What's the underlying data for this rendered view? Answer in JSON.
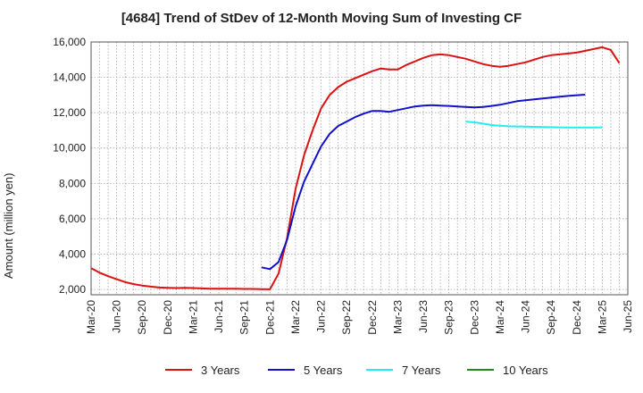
{
  "chart_data": {
    "type": "line",
    "title": "[4684]  Trend of StDev of 12-Month Moving Sum of Investing CF",
    "xlabel": "",
    "ylabel": "Amount (million yen)",
    "ylim": [
      1700,
      16000
    ],
    "yticks": [
      2000,
      4000,
      6000,
      8000,
      10000,
      12000,
      14000,
      16000
    ],
    "ytick_labels": [
      "2,000",
      "4,000",
      "6,000",
      "8,000",
      "10,000",
      "12,000",
      "14,000",
      "16,000"
    ],
    "x_start": "2020-03",
    "x_end": "2025-06",
    "xtick_labels": [
      "Mar-20",
      "Jun-20",
      "Sep-20",
      "Dec-20",
      "Mar-21",
      "Jun-21",
      "Sep-21",
      "Dec-21",
      "Mar-22",
      "Jun-22",
      "Sep-22",
      "Dec-22",
      "Mar-23",
      "Jun-23",
      "Sep-23",
      "Dec-23",
      "Mar-24",
      "Jun-24",
      "Sep-24",
      "Dec-24",
      "Mar-25",
      "Jun-25"
    ],
    "grid": true,
    "legend_position": "bottom",
    "series": [
      {
        "name": "3 Years",
        "color": "#dd1111",
        "start": "2020-03",
        "values": [
          3200,
          2950,
          2750,
          2580,
          2420,
          2300,
          2220,
          2160,
          2110,
          2090,
          2080,
          2090,
          2080,
          2060,
          2040,
          2040,
          2040,
          2040,
          2030,
          2030,
          2020,
          2010,
          2900,
          4900,
          7700,
          9600,
          11000,
          12250,
          13000,
          13450,
          13750,
          13950,
          14150,
          14350,
          14500,
          14450,
          14450,
          14700,
          14900,
          15100,
          15250,
          15300,
          15250,
          15150,
          15050,
          14900,
          14750,
          14650,
          14600,
          14650,
          14750,
          14850,
          15000,
          15150,
          15250,
          15300,
          15350,
          15400,
          15500,
          15600,
          15700,
          15550,
          14800
        ]
      },
      {
        "name": "5 Years",
        "color": "#1111cc",
        "start": "2021-11",
        "values": [
          3250,
          3150,
          3550,
          4800,
          6700,
          8100,
          9100,
          10100,
          10800,
          11250,
          11500,
          11750,
          11950,
          12100,
          12100,
          12050,
          12150,
          12250,
          12350,
          12400,
          12420,
          12400,
          12380,
          12350,
          12320,
          12300,
          12320,
          12380,
          12450,
          12550,
          12650,
          12700,
          12750,
          12800,
          12850,
          12900,
          12950,
          12990,
          13020
        ]
      },
      {
        "name": "7 Years",
        "color": "#22eeee",
        "start": "2023-11",
        "values": [
          11500,
          11450,
          11380,
          11300,
          11260,
          11230,
          11220,
          11210,
          11200,
          11190,
          11180,
          11170,
          11160,
          11160,
          11160,
          11160,
          11170
        ]
      },
      {
        "name": "10 Years",
        "color": "#228822",
        "start": "2025-03",
        "values": []
      }
    ]
  }
}
